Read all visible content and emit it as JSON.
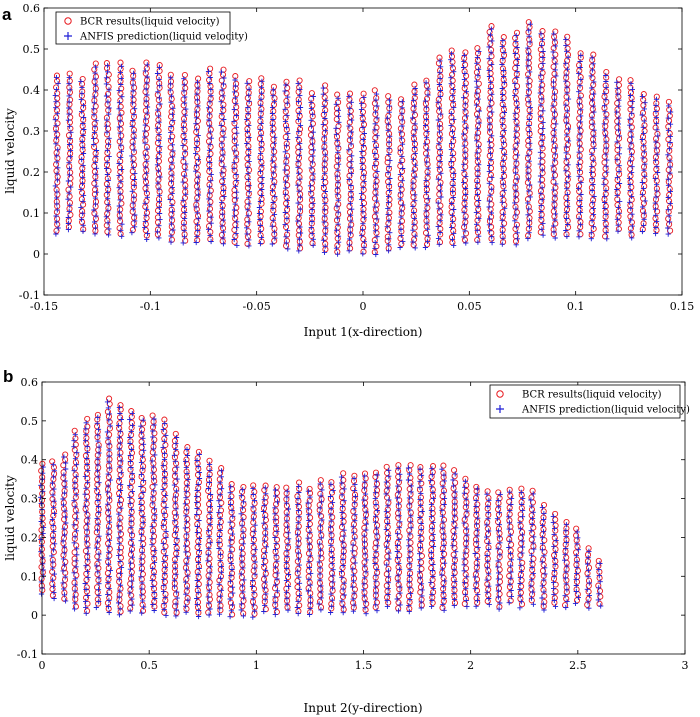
{
  "chart_data": [
    {
      "panel": "a",
      "type": "scatter",
      "xlabel": "Input 1(x-direction)",
      "ylabel": "liquid velocity",
      "xlim": [
        -0.15,
        0.15
      ],
      "ylim": [
        -0.1,
        0.6
      ],
      "xticks": [
        -0.15,
        -0.1,
        -0.05,
        0,
        0.05,
        0.1,
        0.15
      ],
      "xtick_labels": [
        "-0.15",
        "-0.1",
        "-0.05",
        "0",
        "0.05",
        "0.1",
        "0.15"
      ],
      "yticks": [
        -0.1,
        0,
        0.1,
        0.2,
        0.3,
        0.4,
        0.5,
        0.6
      ],
      "ytick_labels": [
        "-0.1",
        "0",
        "0.1",
        "0.2",
        "0.3",
        "0.4",
        "0.5",
        "0.6"
      ],
      "legend_position": "top-left",
      "series": [
        {
          "name": "BCR results(liquid velocity)",
          "marker": "circle",
          "color": "#e8191e"
        },
        {
          "name": "ANFIS prediction(liquid velocity)",
          "marker": "plus",
          "color": "#1f1fd6"
        }
      ],
      "column_step": 0.006,
      "x_start": -0.144,
      "x_end": 0.144,
      "upper_envelope": [
        [
          -0.144,
          0.45
        ],
        [
          -0.12,
          0.47
        ],
        [
          -0.09,
          0.47
        ],
        [
          -0.06,
          0.45
        ],
        [
          -0.03,
          0.43
        ],
        [
          -0.01,
          0.41
        ],
        [
          0.0,
          0.4
        ],
        [
          0.02,
          0.41
        ],
        [
          0.04,
          0.5
        ],
        [
          0.06,
          0.56
        ],
        [
          0.075,
          0.57
        ],
        [
          0.09,
          0.56
        ],
        [
          0.105,
          0.5
        ],
        [
          0.12,
          0.44
        ],
        [
          0.144,
          0.4
        ]
      ],
      "lower_envelope": [
        [
          -0.144,
          0.05
        ],
        [
          -0.1,
          0.04
        ],
        [
          -0.05,
          0.02
        ],
        [
          0.0,
          0.0
        ],
        [
          0.05,
          0.02
        ],
        [
          0.1,
          0.04
        ],
        [
          0.144,
          0.05
        ]
      ]
    },
    {
      "panel": "b",
      "type": "scatter",
      "xlabel": "Input 2(y-direction)",
      "ylabel": "liquid velocity",
      "xlim": [
        0,
        3
      ],
      "ylim": [
        -0.1,
        0.6
      ],
      "xticks": [
        0,
        0.5,
        1,
        1.5,
        2,
        2.5,
        3
      ],
      "xtick_labels": [
        "0",
        "0.5",
        "1",
        "1.5",
        "2",
        "2.5",
        "3"
      ],
      "yticks": [
        -0.1,
        0,
        0.1,
        0.2,
        0.3,
        0.4,
        0.5,
        0.6
      ],
      "ytick_labels": [
        "-0.1",
        "0",
        "0.1",
        "0.2",
        "0.3",
        "0.4",
        "0.5",
        "0.6"
      ],
      "legend_position": "top-right",
      "series": [
        {
          "name": "BCR results(liquid velocity)",
          "marker": "circle",
          "color": "#e8191e"
        },
        {
          "name": "ANFIS prediction(liquid velocity)",
          "marker": "plus",
          "color": "#1f1fd6"
        }
      ],
      "column_step": 0.052,
      "x_start": 0.0,
      "x_end": 2.6,
      "upper_envelope": [
        [
          0.0,
          0.42
        ],
        [
          0.1,
          0.43
        ],
        [
          0.2,
          0.54
        ],
        [
          0.3,
          0.57
        ],
        [
          0.4,
          0.56
        ],
        [
          0.5,
          0.54
        ],
        [
          0.6,
          0.5
        ],
        [
          0.7,
          0.45
        ],
        [
          0.8,
          0.4
        ],
        [
          0.9,
          0.36
        ],
        [
          1.0,
          0.34
        ],
        [
          1.1,
          0.33
        ],
        [
          1.2,
          0.34
        ],
        [
          1.4,
          0.38
        ],
        [
          1.6,
          0.4
        ],
        [
          1.75,
          0.41
        ],
        [
          1.9,
          0.4
        ],
        [
          2.0,
          0.36
        ],
        [
          2.1,
          0.34
        ],
        [
          2.2,
          0.33
        ],
        [
          2.3,
          0.32
        ],
        [
          2.4,
          0.28
        ],
        [
          2.5,
          0.22
        ],
        [
          2.55,
          0.17
        ],
        [
          2.6,
          0.15
        ]
      ],
      "lower_envelope": [
        [
          0.0,
          0.05
        ],
        [
          0.2,
          0.01
        ],
        [
          0.5,
          0.0
        ],
        [
          1.0,
          0.0
        ],
        [
          1.5,
          0.01
        ],
        [
          2.0,
          0.02
        ],
        [
          2.6,
          0.02
        ]
      ]
    }
  ]
}
